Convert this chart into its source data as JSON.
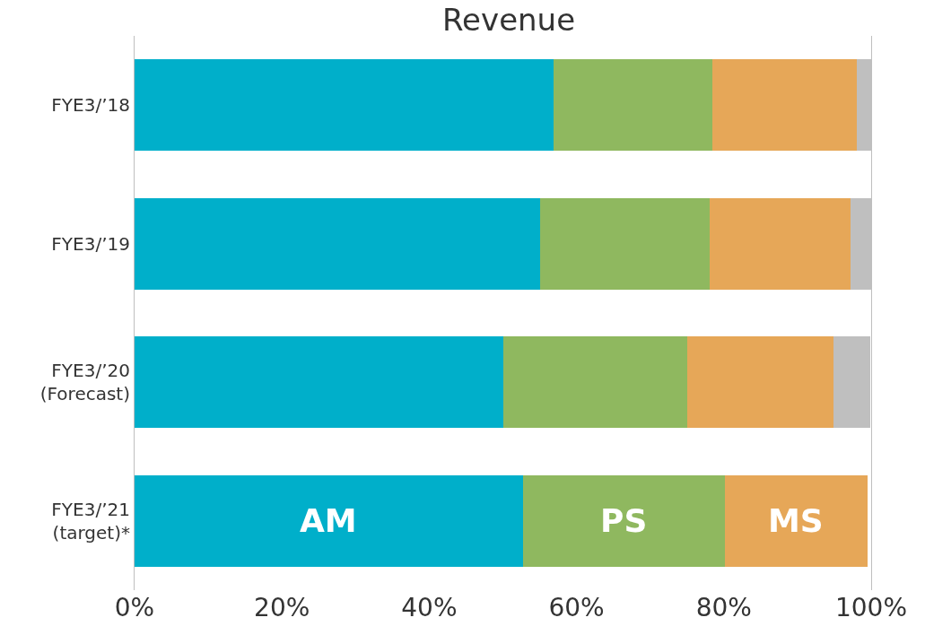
{
  "chart_data": {
    "type": "bar",
    "title": "Revenue",
    "orientation": "horizontal",
    "stacked": true,
    "categories": [
      "FYE3/’18",
      "FYE3/’19",
      "FYE3/’20\n(Forecast)",
      "FYE3/’21\n(target)*"
    ],
    "series": [
      {
        "name": "AM",
        "color": "#00afca",
        "values": [
          56.9,
          55.1,
          50.0,
          52.7
        ]
      },
      {
        "name": "PS",
        "color": "#8fb85f",
        "values": [
          21.6,
          23.0,
          25.0,
          27.4
        ]
      },
      {
        "name": "MS",
        "color": "#e6a758",
        "values": [
          19.6,
          19.1,
          19.9,
          19.4
        ]
      },
      {
        "color": "#bfbfbf",
        "values": [
          1.9,
          2.8,
          5.0,
          0
        ]
      }
    ],
    "xlim": [
      0,
      100
    ],
    "xticks": [
      {
        "value": 0,
        "label": "0%"
      },
      {
        "value": 20,
        "label": "20%"
      },
      {
        "value": 40,
        "label": "40%"
      },
      {
        "value": 60,
        "label": "60%"
      },
      {
        "value": 80,
        "label": "80%"
      },
      {
        "value": 100,
        "label": "100%"
      }
    ]
  }
}
